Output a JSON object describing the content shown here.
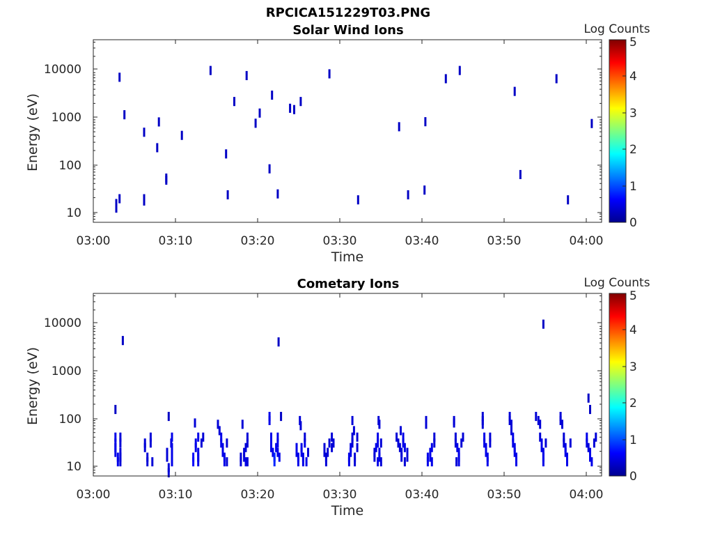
{
  "figure_title": "RPCICA151229T03.PNG",
  "chart_data": [
    {
      "type": "heatmap",
      "title": "Solar Wind Ions",
      "xlabel": "Time",
      "ylabel": "Energy (eV)",
      "yscale": "log",
      "ylim": [
        6,
        45000
      ],
      "xlim": [
        0,
        62
      ],
      "x_tick_values": [
        0,
        10,
        20,
        30,
        40,
        50,
        60
      ],
      "x_tick_labels": [
        "03:00",
        "03:10",
        "03:20",
        "03:30",
        "03:40",
        "03:50",
        "04:00"
      ],
      "y_tick_values": [
        10,
        100,
        1000,
        10000
      ],
      "y_tick_labels": [
        "10",
        "100",
        "1000",
        "10000"
      ],
      "colorbar": {
        "label": "Log Counts",
        "min": 0,
        "max": 5,
        "ticks": [
          "0",
          "1",
          "2",
          "3",
          "4",
          "5"
        ]
      },
      "cells": [
        [
          2.8,
          12,
          0.3
        ],
        [
          2.8,
          15,
          0.3
        ],
        [
          3.2,
          19,
          0.3
        ],
        [
          3.2,
          7200,
          0.3
        ],
        [
          3.8,
          1150,
          0.3
        ],
        [
          6.2,
          17,
          0.3
        ],
        [
          6.2,
          19,
          0.3
        ],
        [
          6.2,
          490,
          0.3
        ],
        [
          7.8,
          230,
          0.3
        ],
        [
          8.0,
          810,
          0.3
        ],
        [
          8.9,
          47,
          0.3
        ],
        [
          8.9,
          52,
          0.3
        ],
        [
          10.8,
          420,
          0.3
        ],
        [
          14.3,
          10000,
          0.3
        ],
        [
          16.2,
          170,
          0.3
        ],
        [
          16.4,
          23,
          0.3
        ],
        [
          17.2,
          2200,
          0.3
        ],
        [
          18.7,
          7800,
          0.3
        ],
        [
          19.8,
          760,
          0.3
        ],
        [
          20.3,
          1250,
          0.3
        ],
        [
          21.5,
          82,
          0.3
        ],
        [
          21.8,
          3000,
          0.3
        ],
        [
          22.5,
          24,
          0.3
        ],
        [
          24.0,
          1580,
          0.3
        ],
        [
          24.5,
          1480,
          0.3
        ],
        [
          25.3,
          2200,
          0.3
        ],
        [
          28.8,
          8500,
          0.3
        ],
        [
          32.3,
          18,
          0.3
        ],
        [
          37.3,
          640,
          0.3
        ],
        [
          38.4,
          23,
          0.3
        ],
        [
          40.4,
          29,
          0.3
        ],
        [
          40.5,
          820,
          0.3
        ],
        [
          43.0,
          6700,
          0.3
        ],
        [
          44.7,
          10000,
          0.3
        ],
        [
          51.4,
          3600,
          0.3
        ],
        [
          52.1,
          62,
          0.3
        ],
        [
          56.5,
          6700,
          0.3
        ],
        [
          57.9,
          18,
          0.3
        ],
        [
          60.8,
          750,
          0.3
        ]
      ]
    },
    {
      "type": "heatmap",
      "title": "Cometary Ions",
      "xlabel": "Time",
      "ylabel": "Energy (eV)",
      "yscale": "log",
      "ylim": [
        6,
        45000
      ],
      "xlim": [
        0,
        62
      ],
      "x_tick_values": [
        0,
        10,
        20,
        30,
        40,
        50,
        60
      ],
      "x_tick_labels": [
        "03:00",
        "03:10",
        "03:20",
        "03:30",
        "03:40",
        "03:50",
        "04:00"
      ],
      "y_tick_values": [
        10,
        100,
        1000,
        10000
      ],
      "y_tick_labels": [
        "10",
        "100",
        "1000",
        "10000"
      ],
      "colorbar": {
        "label": "Log Counts",
        "min": 0,
        "max": 5,
        "ticks": [
          "0",
          "1",
          "2",
          "3",
          "4",
          "5"
        ]
      },
      "cells": [
        [
          2.7,
          155,
          0.3
        ],
        [
          3.6,
          4500,
          0.3
        ],
        [
          9.2,
          110,
          0.3
        ],
        [
          22.6,
          4200,
          0.3
        ],
        [
          22.9,
          110,
          0.3
        ],
        [
          54.9,
          10000,
          0.3
        ],
        [
          60.4,
          270,
          0.3
        ],
        [
          60.6,
          155,
          0.3
        ],
        [
          2.7,
          40,
          0.5
        ],
        [
          2.7,
          30,
          0.5
        ],
        [
          2.7,
          24,
          0.5
        ],
        [
          2.7,
          19,
          0.5
        ],
        [
          3.0,
          15,
          0.5
        ],
        [
          3.0,
          12,
          0.5
        ],
        [
          3.3,
          12,
          0.4
        ],
        [
          3.3,
          15,
          0.4
        ],
        [
          3.3,
          19,
          0.4
        ],
        [
          3.3,
          30,
          0.4
        ],
        [
          3.3,
          40,
          0.4
        ],
        [
          6.3,
          30,
          0.4
        ],
        [
          6.3,
          24,
          0.4
        ],
        [
          6.6,
          15,
          0.4
        ],
        [
          6.6,
          12,
          0.4
        ],
        [
          7.0,
          40,
          0.4
        ],
        [
          7.0,
          30,
          0.4
        ],
        [
          7.2,
          12,
          0.4
        ],
        [
          9.0,
          15,
          0.4
        ],
        [
          9.0,
          19,
          0.4
        ],
        [
          9.2,
          7,
          0.4
        ],
        [
          9.2,
          9,
          0.4
        ],
        [
          9.5,
          30,
          0.4
        ],
        [
          9.6,
          12,
          0.5
        ],
        [
          9.6,
          15,
          0.5
        ],
        [
          9.6,
          19,
          0.5
        ],
        [
          9.6,
          24,
          0.5
        ],
        [
          9.6,
          40,
          0.5
        ],
        [
          12.2,
          15,
          0.6
        ],
        [
          12.2,
          12,
          0.6
        ],
        [
          12.5,
          30,
          0.5
        ],
        [
          12.5,
          24,
          0.5
        ],
        [
          12.8,
          40,
          0.5
        ],
        [
          12.8,
          19,
          0.5
        ],
        [
          12.8,
          15,
          0.5
        ],
        [
          12.8,
          12,
          0.5
        ],
        [
          13.2,
          30,
          0.4
        ],
        [
          13.4,
          40,
          0.4
        ],
        [
          12.4,
          80,
          0.4
        ],
        [
          15.2,
          75,
          0.4
        ],
        [
          15.4,
          55,
          0.4
        ],
        [
          15.6,
          40,
          0.5
        ],
        [
          15.6,
          30,
          0.5
        ],
        [
          15.8,
          24,
          0.5
        ],
        [
          15.8,
          19,
          0.5
        ],
        [
          16.0,
          15,
          0.5
        ],
        [
          16.0,
          12,
          0.5
        ],
        [
          16.3,
          30,
          0.4
        ],
        [
          16.3,
          12,
          0.4
        ],
        [
          18.0,
          12,
          0.4
        ],
        [
          18.0,
          15,
          0.4
        ],
        [
          18.4,
          15,
          0.4
        ],
        [
          18.4,
          19,
          0.4
        ],
        [
          18.6,
          12,
          0.5
        ],
        [
          18.6,
          24,
          0.4
        ],
        [
          18.8,
          40,
          0.4
        ],
        [
          18.8,
          30,
          0.4
        ],
        [
          18.8,
          12,
          0.4
        ],
        [
          18.2,
          75,
          0.4
        ],
        [
          21.5,
          110,
          0.5
        ],
        [
          21.5,
          90,
          0.5
        ],
        [
          21.7,
          40,
          0.5
        ],
        [
          21.7,
          30,
          0.5
        ],
        [
          21.7,
          24,
          0.5
        ],
        [
          21.9,
          19,
          0.5
        ],
        [
          22.1,
          15,
          0.8
        ],
        [
          22.1,
          12,
          0.8
        ],
        [
          22.3,
          24,
          0.5
        ],
        [
          22.5,
          40,
          0.5
        ],
        [
          22.5,
          30,
          0.5
        ],
        [
          22.5,
          19,
          0.5
        ],
        [
          22.7,
          15,
          0.5
        ],
        [
          24.8,
          24,
          0.5
        ],
        [
          24.8,
          19,
          0.5
        ],
        [
          25.0,
          15,
          0.5
        ],
        [
          25.0,
          12,
          0.5
        ],
        [
          25.4,
          24,
          0.5
        ],
        [
          25.4,
          19,
          0.5
        ],
        [
          25.6,
          12,
          0.5
        ],
        [
          25.6,
          15,
          0.5
        ],
        [
          25.8,
          30,
          0.5
        ],
        [
          25.8,
          40,
          0.4
        ],
        [
          26.0,
          12,
          0.5
        ],
        [
          26.2,
          19,
          0.4
        ],
        [
          25.2,
          90,
          0.4
        ],
        [
          25.3,
          70,
          0.4
        ],
        [
          28.2,
          19,
          0.4
        ],
        [
          28.2,
          24,
          0.4
        ],
        [
          28.4,
          15,
          0.4
        ],
        [
          28.4,
          12,
          0.4
        ],
        [
          28.6,
          19,
          0.4
        ],
        [
          28.8,
          30,
          0.4
        ],
        [
          29.1,
          40,
          0.4
        ],
        [
          29.1,
          24,
          0.4
        ],
        [
          29.3,
          30,
          0.4
        ],
        [
          31.2,
          15,
          0.5
        ],
        [
          31.2,
          12,
          0.5
        ],
        [
          31.4,
          24,
          0.5
        ],
        [
          31.4,
          19,
          0.5
        ],
        [
          31.6,
          40,
          0.4
        ],
        [
          31.6,
          30,
          0.4
        ],
        [
          31.8,
          55,
          0.4
        ],
        [
          31.9,
          15,
          0.4
        ],
        [
          31.9,
          12,
          0.4
        ],
        [
          32.2,
          40,
          0.4
        ],
        [
          32.2,
          24,
          0.4
        ],
        [
          31.6,
          90,
          0.4
        ],
        [
          34.3,
          19,
          0.4
        ],
        [
          34.3,
          15,
          0.4
        ],
        [
          34.5,
          24,
          0.5
        ],
        [
          34.7,
          40,
          0.5
        ],
        [
          34.7,
          30,
          0.5
        ],
        [
          34.7,
          12,
          0.5
        ],
        [
          34.9,
          19,
          0.5
        ],
        [
          34.9,
          15,
          0.5
        ],
        [
          35.1,
          30,
          0.4
        ],
        [
          35.1,
          12,
          0.4
        ],
        [
          34.8,
          90,
          0.4
        ],
        [
          34.9,
          75,
          0.4
        ],
        [
          37.0,
          40,
          0.4
        ],
        [
          37.2,
          30,
          0.4
        ],
        [
          37.4,
          24,
          0.4
        ],
        [
          37.6,
          19,
          0.4
        ],
        [
          37.6,
          15,
          0.4
        ],
        [
          37.8,
          40,
          0.5
        ],
        [
          37.8,
          30,
          0.5
        ],
        [
          38.0,
          24,
          0.5
        ],
        [
          38.0,
          12,
          0.4
        ],
        [
          38.3,
          19,
          0.4
        ],
        [
          38.3,
          15,
          0.4
        ],
        [
          37.5,
          55,
          0.4
        ],
        [
          40.6,
          90,
          0.4
        ],
        [
          40.6,
          75,
          0.4
        ],
        [
          40.8,
          15,
          0.5
        ],
        [
          40.8,
          12,
          0.5
        ],
        [
          41.1,
          19,
          0.5
        ],
        [
          41.1,
          15,
          0.5
        ],
        [
          41.3,
          24,
          0.5
        ],
        [
          41.3,
          12,
          0.5
        ],
        [
          41.6,
          40,
          0.4
        ],
        [
          41.6,
          30,
          0.4
        ],
        [
          44.0,
          90,
          0.4
        ],
        [
          44.0,
          80,
          0.4
        ],
        [
          44.2,
          40,
          0.4
        ],
        [
          44.2,
          30,
          0.4
        ],
        [
          44.4,
          24,
          0.5
        ],
        [
          44.6,
          19,
          0.5
        ],
        [
          44.6,
          15,
          0.5
        ],
        [
          44.6,
          12,
          0.5
        ],
        [
          44.9,
          30,
          0.4
        ],
        [
          45.1,
          40,
          0.4
        ],
        [
          44.3,
          12,
          0.4
        ],
        [
          47.5,
          110,
          0.4
        ],
        [
          47.5,
          90,
          0.4
        ],
        [
          47.5,
          75,
          0.4
        ],
        [
          47.7,
          40,
          0.5
        ],
        [
          47.7,
          30,
          0.5
        ],
        [
          47.9,
          24,
          0.5
        ],
        [
          47.9,
          19,
          0.5
        ],
        [
          48.1,
          15,
          0.5
        ],
        [
          48.1,
          12,
          0.5
        ],
        [
          48.4,
          40,
          0.4
        ],
        [
          48.4,
          30,
          0.4
        ],
        [
          50.8,
          110,
          0.4
        ],
        [
          50.8,
          90,
          0.4
        ],
        [
          51.0,
          75,
          0.4
        ],
        [
          51.0,
          55,
          0.4
        ],
        [
          51.2,
          40,
          0.5
        ],
        [
          51.2,
          30,
          0.5
        ],
        [
          51.4,
          24,
          0.5
        ],
        [
          51.4,
          19,
          0.5
        ],
        [
          51.6,
          15,
          0.5
        ],
        [
          51.6,
          12,
          0.5
        ],
        [
          54.0,
          110,
          0.4
        ],
        [
          54.3,
          90,
          0.4
        ],
        [
          54.5,
          75,
          0.4
        ],
        [
          54.5,
          40,
          0.4
        ],
        [
          54.7,
          30,
          0.5
        ],
        [
          54.7,
          24,
          0.5
        ],
        [
          54.9,
          19,
          0.5
        ],
        [
          54.9,
          15,
          0.5
        ],
        [
          54.9,
          12,
          0.5
        ],
        [
          55.2,
          30,
          0.4
        ],
        [
          57.0,
          110,
          0.4
        ],
        [
          57.0,
          90,
          0.4
        ],
        [
          57.2,
          75,
          0.4
        ],
        [
          57.4,
          40,
          0.4
        ],
        [
          57.4,
          30,
          0.4
        ],
        [
          57.6,
          24,
          0.5
        ],
        [
          57.6,
          19,
          0.5
        ],
        [
          57.8,
          15,
          0.5
        ],
        [
          57.8,
          12,
          0.5
        ],
        [
          58.2,
          30,
          0.4
        ],
        [
          60.2,
          40,
          0.5
        ],
        [
          60.2,
          30,
          0.5
        ],
        [
          60.4,
          24,
          0.4
        ],
        [
          60.6,
          19,
          0.5
        ],
        [
          60.6,
          15,
          0.5
        ],
        [
          60.8,
          12,
          0.5
        ],
        [
          61.1,
          30,
          0.4
        ],
        [
          61.3,
          40,
          0.4
        ]
      ]
    }
  ]
}
